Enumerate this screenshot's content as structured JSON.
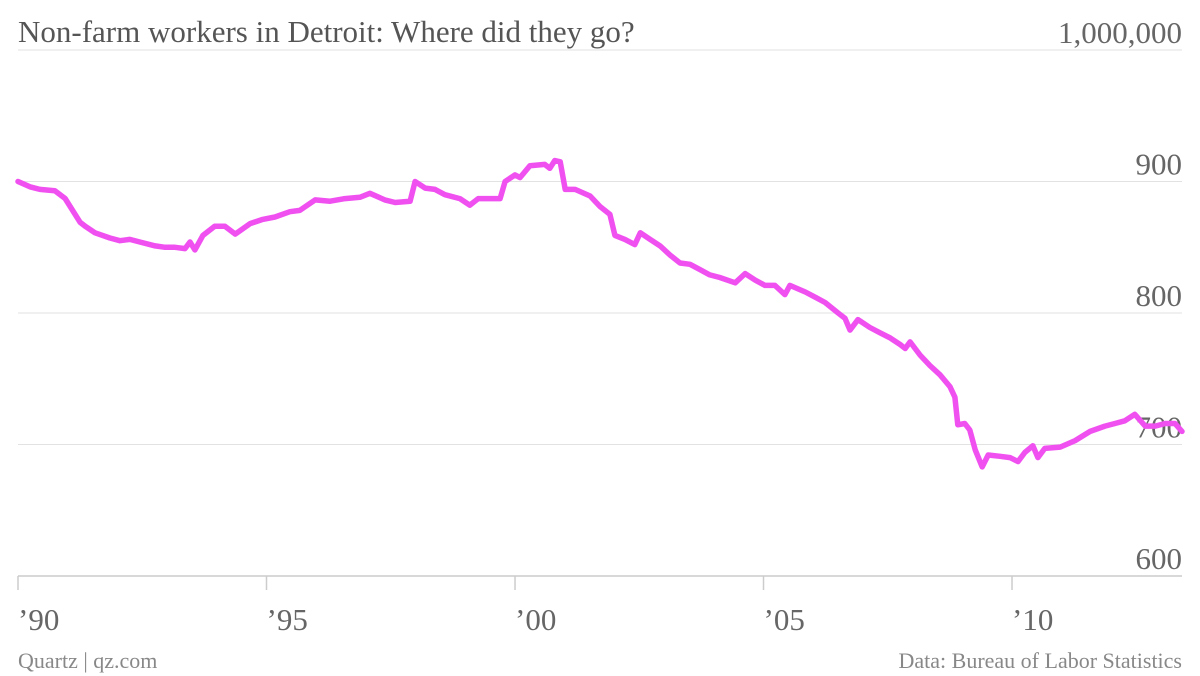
{
  "chart_data": {
    "type": "line",
    "title": "Non-farm workers in Detroit: Where did they go?",
    "credit": "Quartz | qz.com",
    "source": "Data: Bureau of Labor Statistics",
    "xlim": [
      1990,
      2013.42
    ],
    "xticks": [
      {
        "value": 1990,
        "label": "’90"
      },
      {
        "value": 1995,
        "label": "’95"
      },
      {
        "value": 2000,
        "label": "’00"
      },
      {
        "value": 2005,
        "label": "’05"
      },
      {
        "value": 2010,
        "label": "’10"
      }
    ],
    "ylim": [
      600,
      1000
    ],
    "yticks": [
      600,
      700,
      800,
      900,
      {
        "value": 1000,
        "label": "1,000,000"
      }
    ],
    "grid": true,
    "x": [
      1990.0,
      1990.24,
      1990.44,
      1990.74,
      1990.95,
      1991.25,
      1991.35,
      1991.55,
      1991.85,
      1992.05,
      1992.25,
      1992.45,
      1992.76,
      1992.96,
      1993.16,
      1993.36,
      1993.46,
      1993.56,
      1993.72,
      1993.96,
      1994.16,
      1994.37,
      1994.67,
      1994.91,
      1995.17,
      1995.47,
      1995.67,
      1995.98,
      1996.28,
      1996.58,
      1996.88,
      1997.08,
      1997.38,
      1997.59,
      1997.89,
      1997.99,
      1998.19,
      1998.39,
      1998.59,
      1998.89,
      1999.09,
      1999.26,
      1999.5,
      1999.7,
      1999.8,
      2000.0,
      2000.1,
      2000.3,
      2000.6,
      2000.7,
      2000.8,
      2000.91,
      2001.01,
      2001.21,
      2001.51,
      2001.71,
      2001.91,
      2002.01,
      2002.21,
      2002.41,
      2002.52,
      2002.72,
      2002.92,
      2003.12,
      2003.32,
      2003.52,
      2003.72,
      2003.92,
      2004.12,
      2004.43,
      2004.63,
      2004.83,
      2005.03,
      2005.23,
      2005.43,
      2005.53,
      2005.84,
      2006.04,
      2006.24,
      2006.5,
      2006.64,
      2006.74,
      2006.9,
      2007.14,
      2007.34,
      2007.55,
      2007.75,
      2007.85,
      2007.95,
      2008.15,
      2008.35,
      2008.55,
      2008.75,
      2008.85,
      2008.91,
      2009.05,
      2009.15,
      2009.26,
      2009.4,
      2009.52,
      2009.76,
      2009.96,
      2010.12,
      2010.26,
      2010.42,
      2010.52,
      2010.66,
      2010.97,
      2011.27,
      2011.57,
      2011.87,
      2012.07,
      2012.27,
      2012.47,
      2012.68,
      2012.88,
      2013.08,
      2013.28,
      2013.42
    ],
    "series": [
      {
        "name": "Non-farm workers",
        "color": "#f050f0",
        "values": [
          900,
          896,
          894,
          893,
          887,
          869,
          866,
          861,
          857,
          855,
          856,
          854,
          851,
          850,
          850,
          849,
          854,
          848,
          859,
          866,
          866,
          860,
          868,
          871,
          873,
          877,
          878,
          886,
          885,
          887,
          888,
          891,
          886,
          884,
          885,
          900,
          895,
          894,
          890,
          887,
          882,
          887,
          887,
          887,
          900,
          905,
          903,
          912,
          913,
          910,
          916,
          915,
          894,
          894,
          889,
          881,
          875,
          859,
          856,
          852,
          861,
          856,
          851,
          844,
          838,
          837,
          833,
          829,
          827,
          823,
          830,
          825,
          821,
          821,
          814,
          821,
          816,
          812,
          808,
          800,
          796,
          787,
          795,
          789,
          785,
          781,
          776,
          773,
          778,
          768,
          760,
          753,
          744,
          736,
          715,
          716,
          711,
          696,
          683,
          692,
          691,
          690,
          687,
          694,
          699,
          690,
          697,
          698,
          703,
          710,
          714,
          716,
          718,
          723,
          714,
          714,
          716,
          716,
          710
        ]
      }
    ]
  }
}
